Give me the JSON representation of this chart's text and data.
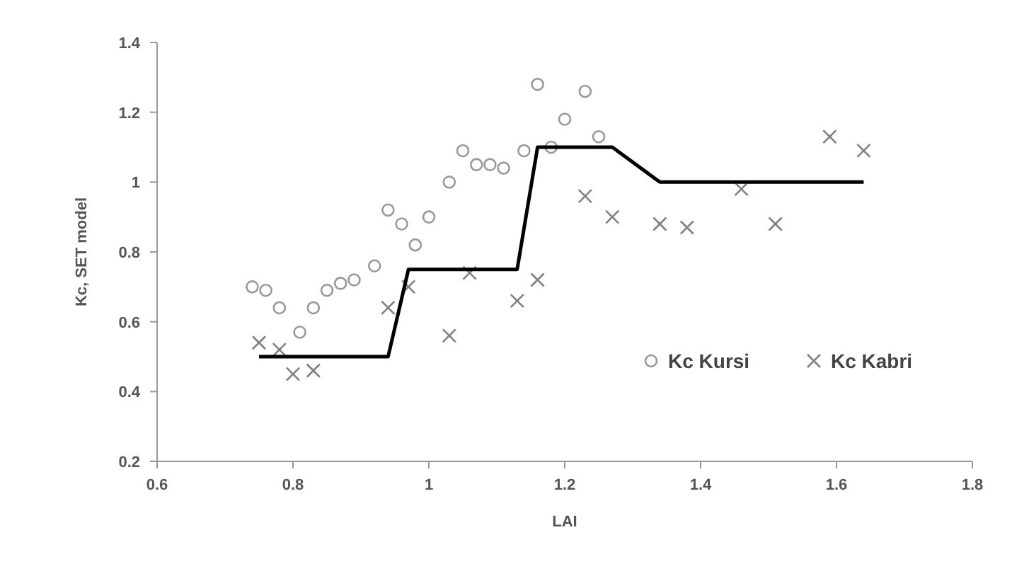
{
  "chart_data": {
    "type": "scatter",
    "xlabel": "LAI",
    "ylabel": "Kc, SET model",
    "xlim": [
      0.6,
      1.8
    ],
    "ylim": [
      0.2,
      1.4
    ],
    "xticks": [
      0.6,
      0.8,
      1,
      1.2,
      1.4,
      1.6,
      1.8
    ],
    "yticks": [
      0.2,
      0.4,
      0.6,
      0.8,
      1,
      1.2,
      1.4
    ],
    "legend": "right",
    "series": [
      {
        "name": "Kc Kursi",
        "marker": "circle",
        "color": "#999999",
        "x": [
          0.74,
          0.76,
          0.78,
          0.81,
          0.83,
          0.85,
          0.87,
          0.89,
          0.92,
          0.94,
          0.96,
          0.98,
          1.0,
          1.03,
          1.05,
          1.07,
          1.09,
          1.11,
          1.14,
          1.16,
          1.18,
          1.2,
          1.23,
          1.25
        ],
        "values": [
          0.7,
          0.69,
          0.64,
          0.57,
          0.64,
          0.69,
          0.71,
          0.72,
          0.76,
          0.92,
          0.88,
          0.82,
          0.9,
          1.0,
          1.09,
          1.05,
          1.05,
          1.04,
          1.09,
          1.28,
          1.1,
          1.18,
          1.26,
          1.13
        ]
      },
      {
        "name": "Kc Kabri",
        "marker": "cross",
        "color": "#808080",
        "x": [
          0.75,
          0.78,
          0.8,
          0.83,
          0.94,
          0.97,
          1.03,
          1.06,
          1.13,
          1.16,
          1.23,
          1.27,
          1.34,
          1.38,
          1.46,
          1.51,
          1.59,
          1.64
        ],
        "values": [
          0.54,
          0.52,
          0.45,
          0.46,
          0.64,
          0.7,
          0.56,
          0.74,
          0.66,
          0.72,
          0.96,
          0.9,
          0.88,
          0.87,
          0.98,
          0.88,
          1.13,
          1.09
        ]
      },
      {
        "type": "line",
        "marker": "none",
        "color": "#000000",
        "x": [
          0.75,
          0.94,
          0.97,
          1.13,
          1.16,
          1.27,
          1.34,
          1.64
        ],
        "values": [
          0.5,
          0.5,
          0.75,
          0.75,
          1.1,
          1.1,
          1.0,
          1.0
        ]
      }
    ]
  }
}
